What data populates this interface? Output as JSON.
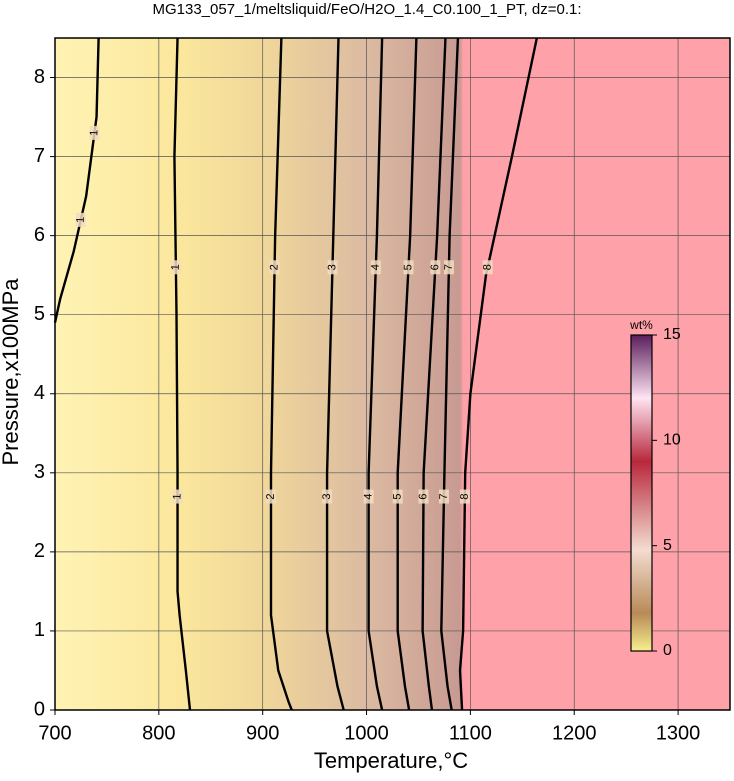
{
  "chart_data": {
    "type": "contour",
    "title": "MG133_057_1/meltsliquid/FeO/H2O_1.4_C0.100_1_PT, dz=0.1:",
    "x_label": "Temperature,°C",
    "y_label": "Pressure,x100MPa",
    "xlim": [
      700,
      1350
    ],
    "xticks": [
      700,
      800,
      900,
      1000,
      1100,
      1200,
      1300
    ],
    "ylim": [
      0,
      8.5
    ],
    "yticks": [
      0,
      1,
      2,
      3,
      4,
      5,
      6,
      7,
      8
    ],
    "grid": true,
    "contours": [
      {
        "level": 1,
        "x": [
          742,
          740,
          730,
          718,
          705,
          700
        ],
        "y": [
          8.5,
          7.5,
          6.5,
          5.8,
          5.2,
          4.9
        ]
      },
      {
        "level": 1,
        "x": [
          818,
          815,
          817,
          818,
          818,
          820,
          826,
          830
        ],
        "y": [
          8.5,
          7,
          5,
          3,
          1.5,
          1.2,
          0.5,
          0
        ]
      },
      {
        "level": 2,
        "x": [
          918,
          912,
          908,
          908,
          915,
          925,
          928
        ],
        "y": [
          8.5,
          6,
          3,
          1.2,
          0.5,
          0.1,
          0
        ]
      },
      {
        "level": 3,
        "x": [
          973,
          968,
          962,
          962,
          972,
          978
        ],
        "y": [
          8.5,
          6,
          3,
          1,
          0.3,
          0
        ]
      },
      {
        "level": 4,
        "x": [
          1015,
          1010,
          1002,
          1002,
          1010,
          1015
        ],
        "y": [
          8.5,
          6,
          3,
          1,
          0.3,
          0
        ]
      },
      {
        "level": 5,
        "x": [
          1048,
          1042,
          1030,
          1030,
          1037,
          1041
        ],
        "y": [
          8.5,
          6,
          3,
          1,
          0.3,
          0
        ]
      },
      {
        "level": 6,
        "x": [
          1076,
          1068,
          1055,
          1054,
          1060,
          1063
        ],
        "y": [
          8.5,
          6,
          3,
          1,
          0.3,
          0
        ]
      },
      {
        "level": 7,
        "x": [
          1088,
          1080,
          1075,
          1072,
          1078,
          1082
        ],
        "y": [
          8.5,
          6,
          3,
          1,
          0.3,
          0
        ]
      },
      {
        "level": 8,
        "x": [
          1164,
          1140,
          1115,
          1100,
          1095,
          1093,
          1090,
          1092
        ],
        "y": [
          8.5,
          7,
          5.5,
          4,
          3,
          1,
          0.5,
          0
        ]
      }
    ],
    "colorbar": {
      "label": "wt%",
      "lim": [
        0,
        15
      ],
      "ticks": [
        0,
        5,
        10,
        15
      ]
    }
  }
}
